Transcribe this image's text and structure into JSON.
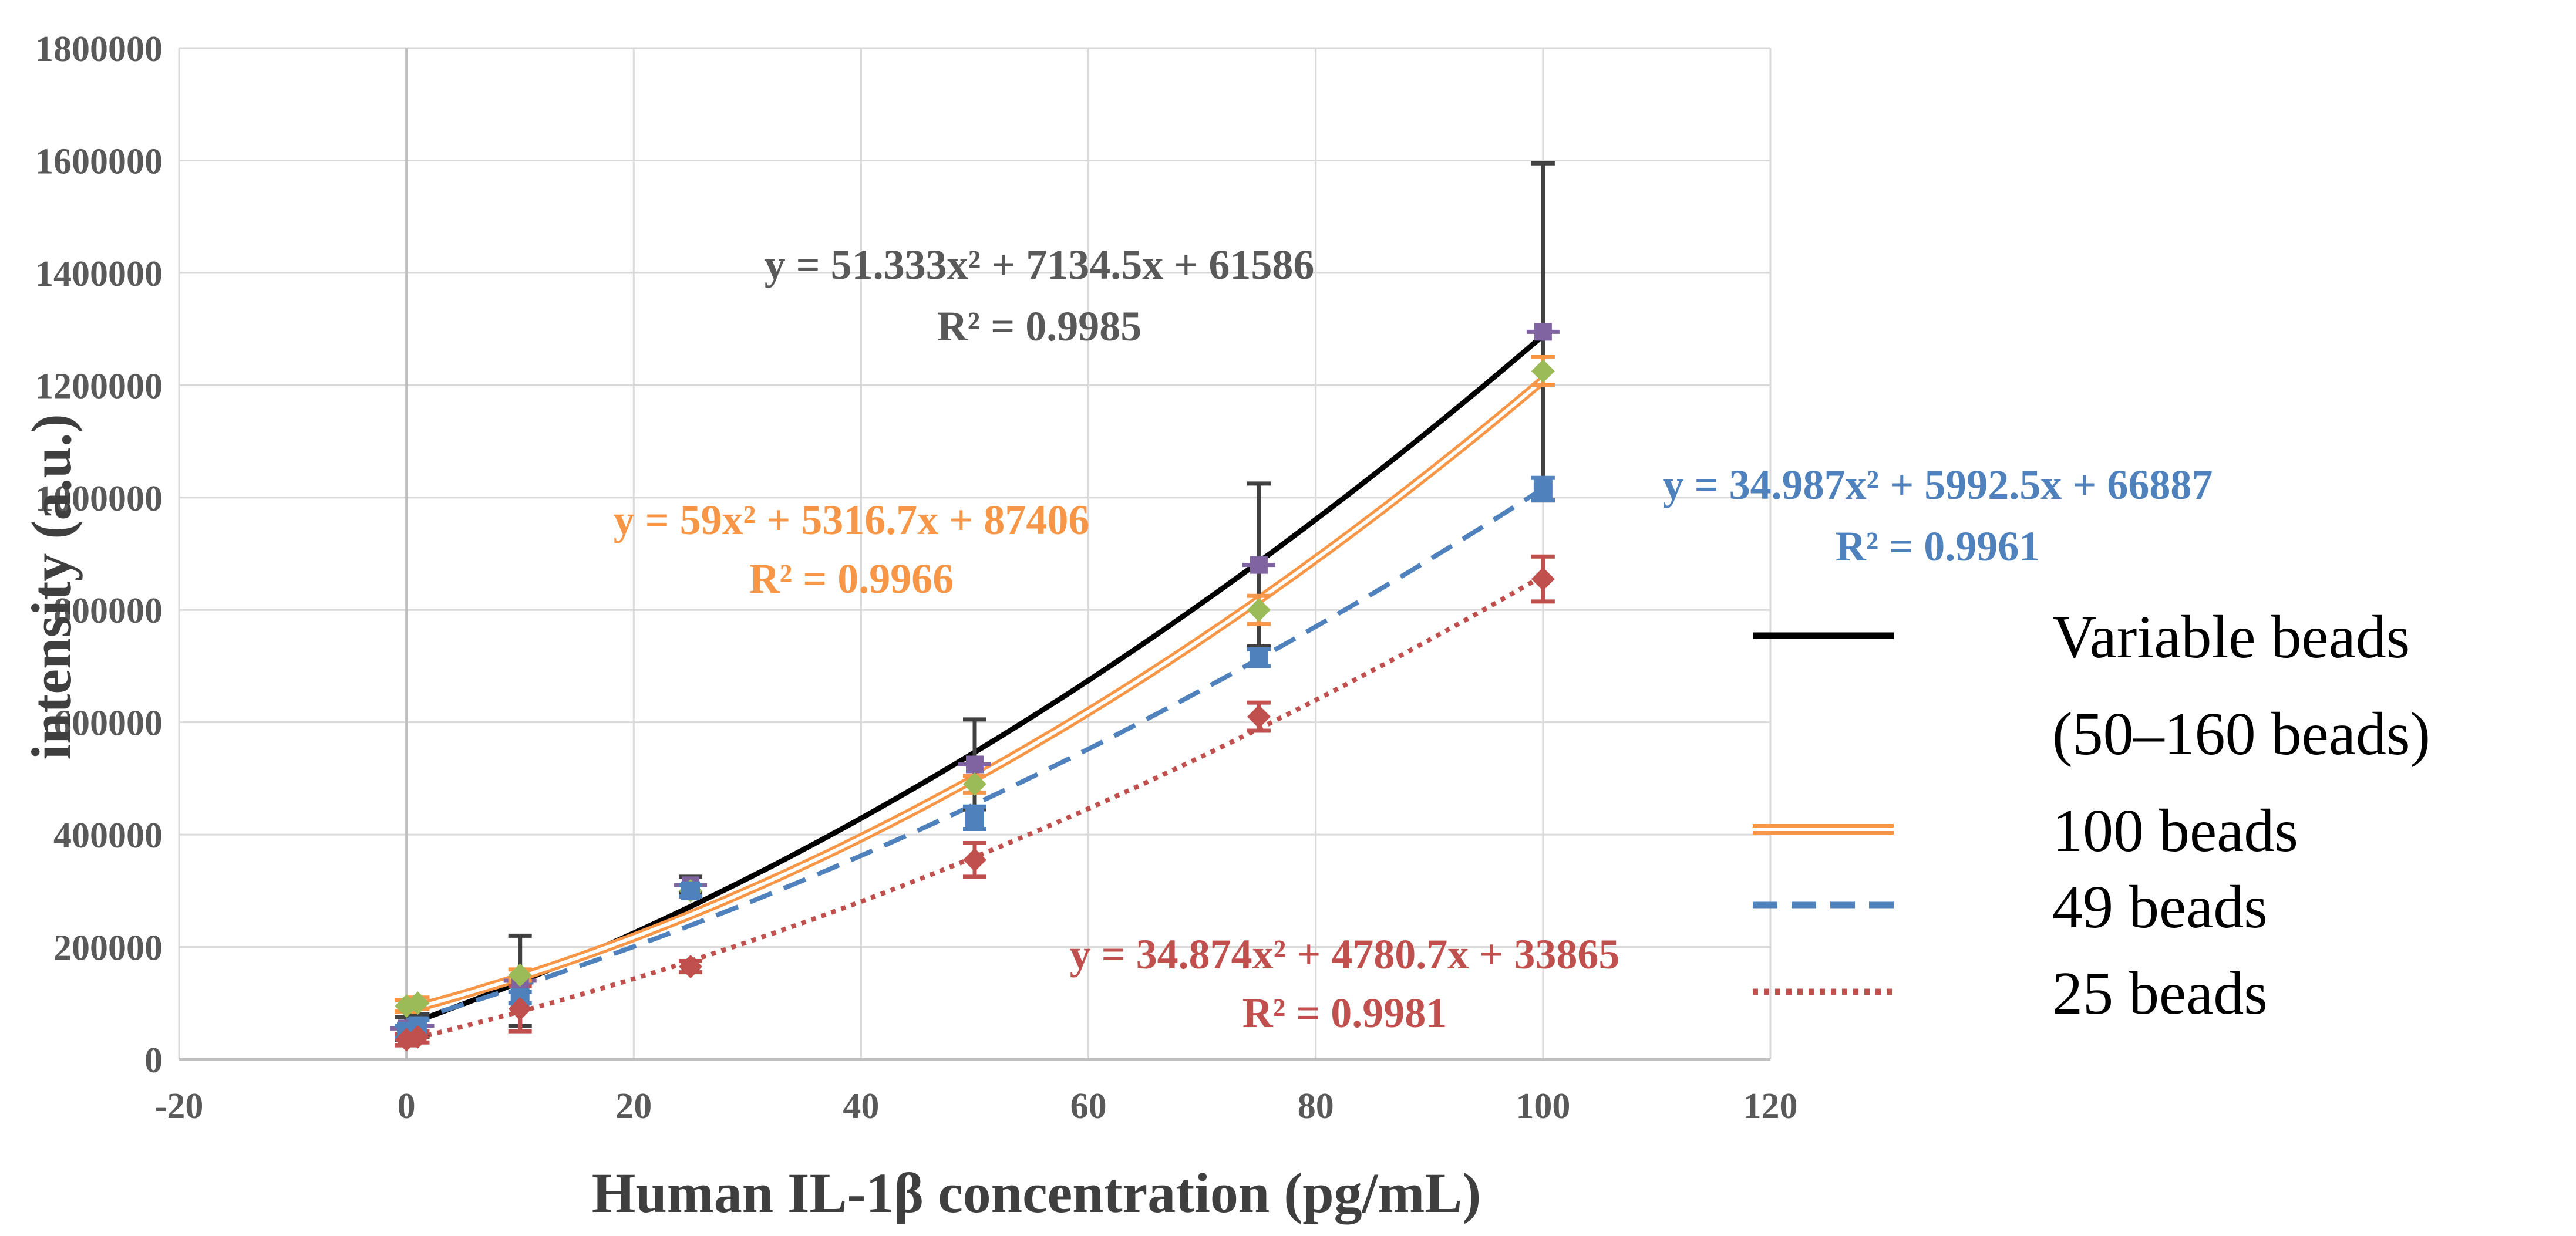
{
  "chart_data": {
    "type": "scatter",
    "xlabel": "Human IL-1β concentration (pg/mL)",
    "ylabel": "intensity (a.u.)",
    "xlim": [
      -20,
      120
    ],
    "ylim": [
      0,
      1800000
    ],
    "x_ticks": [
      "-20",
      "0",
      "20",
      "40",
      "60",
      "80",
      "100",
      "120"
    ],
    "y_ticks": [
      "0",
      "200000",
      "400000",
      "600000",
      "800000",
      "1000000",
      "1200000",
      "1400000",
      "1600000",
      "1800000"
    ],
    "grid": true,
    "legend_position": "right",
    "series": [
      {
        "name": "Variable beads",
        "name_line2": "(50–160 beads)",
        "color": "#000000",
        "marker_color": "#8064a2",
        "line_style": "solid",
        "x": [
          0,
          1,
          10,
          25,
          50,
          75,
          100
        ],
        "y": [
          55000,
          60000,
          140000,
          310000,
          525000,
          880000,
          1295000
        ],
        "error": [
          20000,
          20000,
          80000,
          15000,
          80000,
          145000,
          300000
        ],
        "fit": {
          "a": 51.333,
          "b": 7134.5,
          "c": 61586
        },
        "equation": "y = 51.333x² + 7134.5x + 61586",
        "r2": "R² = 0.9985",
        "label_color": "#595959"
      },
      {
        "name": "100 beads",
        "color": "#f79646",
        "marker_color": "#9bbb59",
        "line_style": "double",
        "x": [
          0,
          1,
          10,
          25,
          50,
          75,
          100
        ],
        "y": [
          95000,
          100000,
          150000,
          300000,
          490000,
          800000,
          1225000
        ],
        "error": [
          10000,
          10000,
          10000,
          10000,
          15000,
          25000,
          25000
        ],
        "fit": {
          "a": 59,
          "b": 5316.7,
          "c": 87406
        },
        "equation": "y = 59x² + 5316.7x + 87406",
        "r2": "R² = 0.9966",
        "label_color": "#f79646"
      },
      {
        "name": "49 beads",
        "color": "#4f81bd",
        "marker_color": "#4f81bd",
        "line_style": "dashed",
        "x": [
          0,
          1,
          10,
          25,
          50,
          75,
          100
        ],
        "y": [
          50000,
          60000,
          110000,
          300000,
          430000,
          715000,
          1015000
        ],
        "error": [
          10000,
          10000,
          10000,
          10000,
          20000,
          15000,
          20000
        ],
        "fit": {
          "a": 34.987,
          "b": 5992.5,
          "c": 66887
        },
        "equation": "y = 34.987x² + 5992.5x + 66887",
        "r2": "R² = 0.9961",
        "label_color": "#4f81bd"
      },
      {
        "name": "25 beads",
        "color": "#c0504d",
        "marker_color": "#c0504d",
        "line_style": "dotted",
        "x": [
          0,
          1,
          10,
          25,
          50,
          75,
          100
        ],
        "y": [
          35000,
          40000,
          90000,
          165000,
          355000,
          610000,
          855000
        ],
        "error": [
          10000,
          10000,
          40000,
          10000,
          30000,
          25000,
          40000
        ],
        "fit": {
          "a": 34.874,
          "b": 4780.7,
          "c": 33865
        },
        "equation": "y = 34.874x² + 4780.7x + 33865",
        "r2": "R² = 0.9981",
        "label_color": "#c0504d"
      }
    ]
  }
}
